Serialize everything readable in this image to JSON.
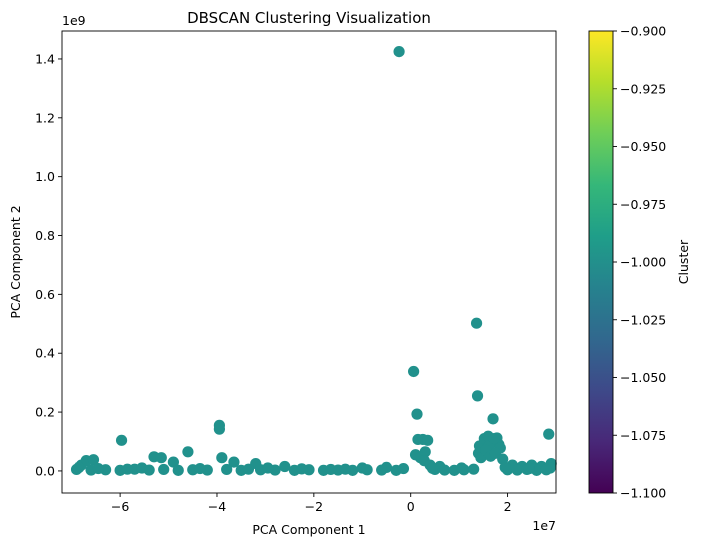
{
  "chart_data": {
    "type": "scatter",
    "title": "DBSCAN Clustering Visualization",
    "xlabel": "PCA Component 1",
    "ylabel": "PCA Component 2",
    "x_offset_label": "1e7",
    "y_offset_label": "1e9",
    "x_scale": 10000000,
    "y_scale": 1000000000,
    "xlim": [
      -7.2,
      3.0
    ],
    "ylim": [
      -0.075,
      1.495
    ],
    "xticks": [
      -6,
      -4,
      -2,
      0,
      2
    ],
    "xtick_labels": [
      "−6",
      "−4",
      "−2",
      "0",
      "2"
    ],
    "yticks": [
      0.0,
      0.2,
      0.4,
      0.6,
      0.8,
      1.0,
      1.2,
      1.4
    ],
    "ytick_labels": [
      "0.0",
      "0.2",
      "0.4",
      "0.6",
      "0.8",
      "1.0",
      "1.2",
      "1.4"
    ],
    "grid": false,
    "point_color": "#21918c",
    "colorbar": {
      "label": "Cluster",
      "colormap": "viridis",
      "range": [
        -1.1,
        -0.9
      ],
      "ticks": [
        -1.1,
        -1.075,
        -1.05,
        -1.025,
        -1.0,
        -0.975,
        -0.95,
        -0.925,
        -0.9
      ],
      "tick_labels": [
        "−1.100",
        "−1.075",
        "−1.050",
        "−1.025",
        "−1.000",
        "−0.975",
        "−0.950",
        "−0.925",
        "−0.900"
      ],
      "colors": [
        "#440154",
        "#482878",
        "#3e4989",
        "#31688e",
        "#26828e",
        "#1f9e89",
        "#35b779",
        "#6ece58",
        "#b5de2b",
        "#fde725"
      ]
    },
    "points_x": [
      -0.24,
      1.36,
      0.06,
      0.13,
      1.38,
      1.7,
      -5.97,
      -3.95,
      -3.95,
      2.85,
      0.15,
      0.25,
      0.35,
      1.42,
      1.52,
      1.6,
      1.78,
      1.82,
      1.62,
      1.72,
      1.85,
      1.48,
      -4.6,
      -5.3,
      -5.15,
      -6.7,
      -6.55,
      -6.8,
      -4.9,
      -3.65,
      -3.9,
      -3.2,
      -2.6,
      -1.0,
      -0.5,
      0.3,
      0.1,
      0.2,
      0.28,
      0.4,
      0.6,
      1.4,
      1.45,
      1.55,
      1.65,
      1.75,
      1.9,
      2.1,
      2.3,
      2.5,
      2.7,
      2.9,
      2.88,
      -6.9,
      -6.6,
      -6.3,
      -6.0,
      -5.7,
      -5.4,
      -5.1,
      -4.8,
      -4.5,
      -4.2,
      -3.8,
      -3.5,
      -3.1,
      -2.8,
      -2.4,
      -2.1,
      -1.8,
      -1.5,
      -1.2,
      -0.9,
      -0.6,
      -0.3,
      0.5,
      0.7,
      0.9,
      1.1,
      1.3,
      2.0,
      2.2,
      2.4,
      2.6,
      2.8,
      -6.85,
      -6.45,
      -5.85,
      -5.55,
      -4.35,
      -3.35,
      -2.95,
      -2.25,
      -1.65,
      -1.35,
      -0.15,
      0.45,
      1.05,
      1.95,
      2.45
    ],
    "points_y": [
      1.425,
      0.502,
      0.338,
      0.193,
      0.255,
      0.177,
      0.104,
      0.155,
      0.142,
      0.125,
      0.107,
      0.107,
      0.104,
      0.085,
      0.11,
      0.118,
      0.112,
      0.09,
      0.085,
      0.11,
      0.078,
      0.07,
      0.065,
      0.048,
      0.045,
      0.035,
      0.038,
      0.02,
      0.03,
      0.03,
      0.045,
      0.025,
      0.015,
      0.01,
      0.012,
      0.065,
      0.055,
      0.045,
      0.035,
      0.02,
      0.015,
      0.06,
      0.045,
      0.07,
      0.05,
      0.06,
      0.04,
      0.02,
      0.015,
      0.02,
      0.015,
      0.025,
      0.01,
      0.005,
      0.003,
      0.004,
      0.002,
      0.006,
      0.003,
      0.005,
      0.002,
      0.004,
      0.003,
      0.005,
      0.002,
      0.004,
      0.003,
      0.002,
      0.004,
      0.002,
      0.003,
      0.002,
      0.004,
      0.003,
      0.002,
      0.005,
      0.003,
      0.002,
      0.004,
      0.006,
      0.004,
      0.003,
      0.005,
      0.002,
      0.004,
      0.012,
      0.008,
      0.006,
      0.01,
      0.008,
      0.006,
      0.01,
      0.007,
      0.005,
      0.006,
      0.008,
      0.009,
      0.01,
      0.012,
      0.008
    ]
  }
}
